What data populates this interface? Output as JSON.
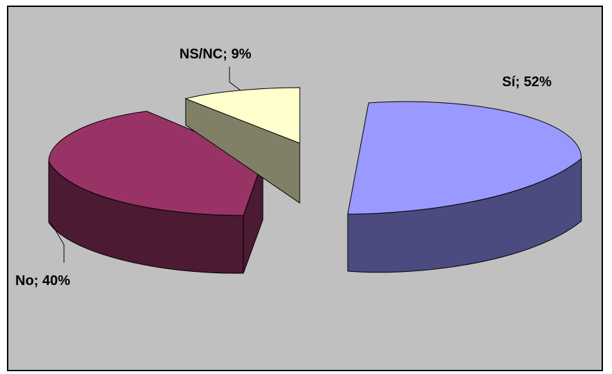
{
  "chart_data": {
    "type": "pie",
    "title": "",
    "slices": [
      {
        "label": "Sí; 52%",
        "name": "Sí",
        "value": 52,
        "color_top": "#9999ff",
        "color_side": "#4b4b7f"
      },
      {
        "label": "No; 40%",
        "name": "No",
        "value": 40,
        "color_top": "#993366",
        "color_side": "#4c1a33"
      },
      {
        "label": "NS/NC; 9%",
        "name": "NS/NC",
        "value": 9,
        "color_top": "#ffffcc",
        "color_side": "#808066"
      }
    ],
    "style": "3d-exploded",
    "legend": "none",
    "background": "#c0c0c0"
  }
}
